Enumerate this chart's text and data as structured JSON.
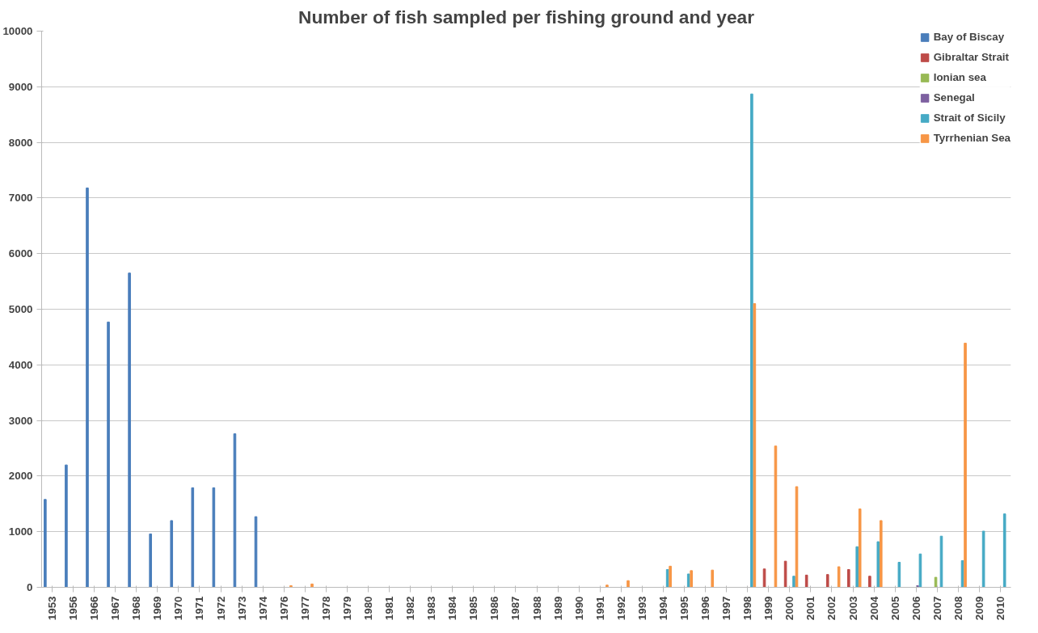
{
  "chart_data": {
    "type": "bar",
    "title": "Number of fish sampled per fishing ground and year",
    "categories": [
      "1953",
      "1956",
      "1966",
      "1967",
      "1968",
      "1969",
      "1970",
      "1971",
      "1972",
      "1973",
      "1974",
      "1976",
      "1977",
      "1978",
      "1979",
      "1980",
      "1981",
      "1982",
      "1983",
      "1984",
      "1985",
      "1986",
      "1987",
      "1988",
      "1989",
      "1990",
      "1991",
      "1992",
      "1993",
      "1994",
      "1995",
      "1996",
      "1997",
      "1998",
      "1999",
      "2000",
      "2001",
      "2002",
      "2003",
      "2004",
      "2005",
      "2006",
      "2007",
      "2008",
      "2009",
      "2010"
    ],
    "series": [
      {
        "name": "Bay of Biscay",
        "color": "#4a7ebb",
        "values": [
          1580,
          2200,
          7180,
          4770,
          5650,
          960,
          1200,
          1790,
          1790,
          2760,
          1270,
          null,
          null,
          null,
          null,
          null,
          null,
          null,
          null,
          null,
          null,
          null,
          null,
          null,
          null,
          null,
          null,
          null,
          null,
          null,
          null,
          null,
          null,
          null,
          null,
          null,
          null,
          null,
          null,
          null,
          null,
          null,
          null,
          null,
          null,
          null
        ]
      },
      {
        "name": "Gibraltar Strait",
        "color": "#be4b48",
        "values": [
          null,
          null,
          null,
          null,
          null,
          null,
          null,
          null,
          null,
          null,
          null,
          null,
          null,
          null,
          null,
          null,
          null,
          null,
          null,
          null,
          null,
          null,
          null,
          null,
          null,
          null,
          null,
          null,
          null,
          null,
          null,
          null,
          null,
          null,
          330,
          470,
          220,
          230,
          320,
          200,
          null,
          null,
          null,
          null,
          null,
          null
        ]
      },
      {
        "name": "Ionian sea",
        "color": "#98b954",
        "values": [
          null,
          null,
          null,
          null,
          null,
          null,
          null,
          null,
          null,
          null,
          null,
          null,
          null,
          null,
          null,
          null,
          null,
          null,
          null,
          null,
          null,
          null,
          null,
          null,
          null,
          null,
          null,
          null,
          null,
          null,
          null,
          null,
          null,
          null,
          null,
          null,
          null,
          null,
          null,
          null,
          null,
          null,
          180,
          null,
          null,
          null
        ]
      },
      {
        "name": "Senegal",
        "color": "#7d60a0",
        "values": [
          null,
          null,
          null,
          null,
          null,
          null,
          null,
          null,
          null,
          null,
          null,
          null,
          null,
          null,
          null,
          null,
          null,
          null,
          null,
          null,
          null,
          null,
          null,
          null,
          null,
          null,
          null,
          null,
          null,
          null,
          null,
          null,
          null,
          null,
          null,
          null,
          null,
          null,
          null,
          null,
          null,
          30,
          null,
          null,
          null,
          null
        ]
      },
      {
        "name": "Strait of Sicily",
        "color": "#46aac5",
        "values": [
          null,
          null,
          null,
          null,
          null,
          null,
          null,
          null,
          null,
          null,
          null,
          null,
          null,
          null,
          null,
          null,
          null,
          null,
          null,
          null,
          null,
          null,
          null,
          null,
          null,
          null,
          null,
          null,
          null,
          320,
          240,
          null,
          null,
          8870,
          null,
          200,
          null,
          null,
          730,
          820,
          450,
          600,
          920,
          480,
          1010,
          1320
        ]
      },
      {
        "name": "Tyrrhenian Sea",
        "color": "#f79646",
        "values": [
          null,
          null,
          null,
          null,
          null,
          null,
          null,
          null,
          null,
          null,
          null,
          30,
          60,
          null,
          null,
          null,
          null,
          null,
          null,
          null,
          null,
          null,
          null,
          null,
          null,
          null,
          40,
          120,
          null,
          380,
          300,
          310,
          null,
          5100,
          2540,
          1810,
          null,
          370,
          1410,
          1200,
          null,
          null,
          null,
          4390,
          null,
          null
        ]
      }
    ],
    "ylim": [
      0,
      10000
    ],
    "yticks": [
      0,
      1000,
      2000,
      3000,
      4000,
      5000,
      6000,
      7000,
      8000,
      9000,
      10000
    ],
    "grid": "y",
    "legend": "top right"
  }
}
